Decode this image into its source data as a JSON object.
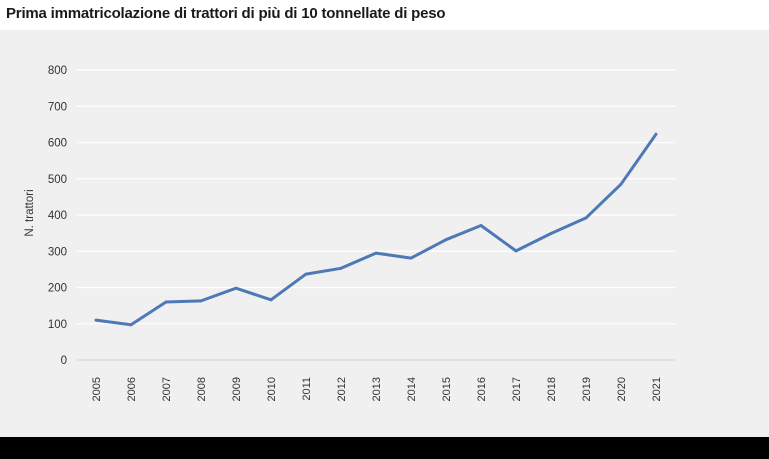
{
  "header": {
    "title": "Prima immatricolazione di trattori di più di 10 tonnellate di peso"
  },
  "colors": {
    "line": "#4e79b6",
    "grid": "#ffffff",
    "panel": "#f0f0f0",
    "footer": "#000000"
  },
  "chart_data": {
    "type": "line",
    "title": "Prima immatricolazione di trattori di più di 10 tonnellate di peso",
    "xlabel": "",
    "ylabel": "N. trattori",
    "categories": [
      "2005",
      "2006",
      "2007",
      "2008",
      "2009",
      "2010",
      "2011",
      "2012",
      "2013",
      "2014",
      "2015",
      "2016",
      "2017",
      "2018",
      "2019",
      "2020",
      "2021"
    ],
    "series": [
      {
        "name": "N. trattori",
        "values": [
          110,
          97,
          160,
          163,
          198,
          166,
          237,
          253,
          295,
          281,
          332,
          371,
          301,
          349,
          392,
          485,
          623
        ]
      }
    ],
    "ylim": [
      0,
      800
    ],
    "yticks": [
      0,
      100,
      200,
      300,
      400,
      500,
      600,
      700,
      800
    ],
    "grid": true,
    "legend": "none"
  }
}
